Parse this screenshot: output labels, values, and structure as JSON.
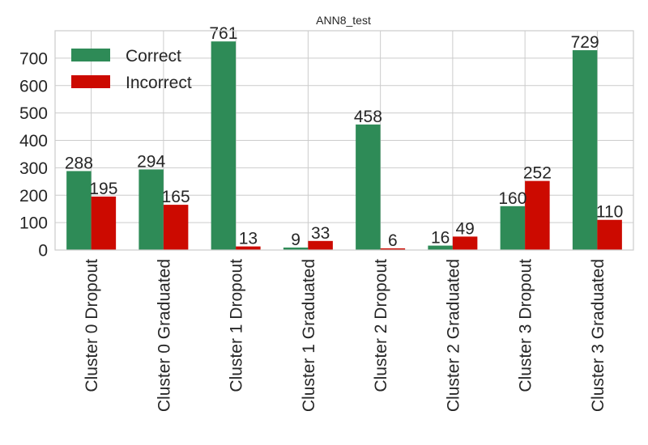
{
  "chart_data": {
    "type": "bar",
    "title": "ANN8_test",
    "xlabel": "",
    "ylabel": "",
    "categories": [
      "Cluster 0 Dropout",
      "Cluster 0 Graduated",
      "Cluster 1 Dropout",
      "Cluster 1 Graduated",
      "Cluster 2 Dropout",
      "Cluster 2 Graduated",
      "Cluster 3 Dropout",
      "Cluster 3 Graduated"
    ],
    "series": [
      {
        "name": "Correct",
        "color": "#2e8b57",
        "values": [
          288,
          294,
          761,
          9,
          458,
          16,
          160,
          729
        ]
      },
      {
        "name": "Incorrect",
        "color": "#cc0a00",
        "values": [
          195,
          165,
          13,
          33,
          6,
          49,
          252,
          110
        ]
      }
    ],
    "ylim": [
      0,
      800
    ],
    "yticks": [
      0,
      100,
      200,
      300,
      400,
      500,
      600,
      700
    ],
    "grid": true,
    "legend": "top-left"
  }
}
